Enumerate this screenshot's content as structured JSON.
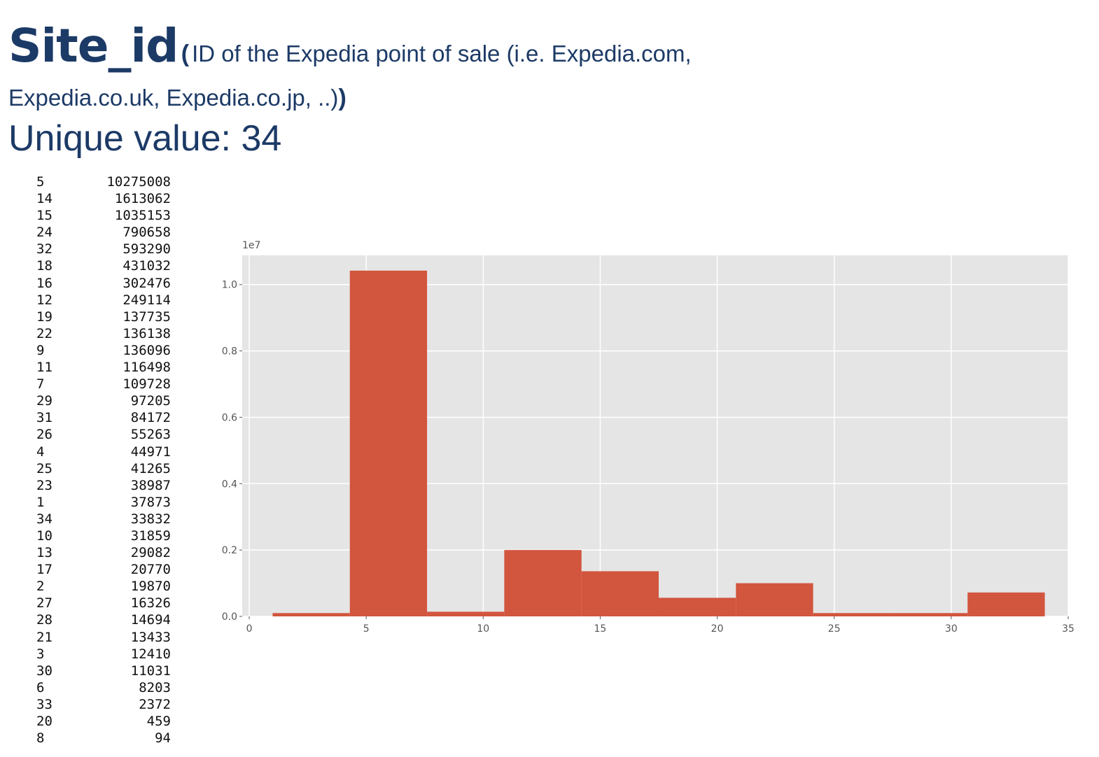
{
  "header": {
    "title": "Site_id",
    "paren_open": "(",
    "description_line1": "ID of the Expedia point of sale (i.e. Expedia.com,",
    "description_line2": "Expedia.co.uk, Expedia.co.jp, ..)",
    "paren_close": ")"
  },
  "unique_value_label": "Unique value: 34",
  "value_counts": [
    {
      "key": "5",
      "count": "10275008"
    },
    {
      "key": "14",
      "count": "1613062"
    },
    {
      "key": "15",
      "count": "1035153"
    },
    {
      "key": "24",
      "count": "790658"
    },
    {
      "key": "32",
      "count": "593290"
    },
    {
      "key": "18",
      "count": "431032"
    },
    {
      "key": "16",
      "count": "302476"
    },
    {
      "key": "12",
      "count": "249114"
    },
    {
      "key": "19",
      "count": "137735"
    },
    {
      "key": "22",
      "count": "136138"
    },
    {
      "key": "9",
      "count": "136096"
    },
    {
      "key": "11",
      "count": "116498"
    },
    {
      "key": "7",
      "count": "109728"
    },
    {
      "key": "29",
      "count": "97205"
    },
    {
      "key": "31",
      "count": "84172"
    },
    {
      "key": "26",
      "count": "55263"
    },
    {
      "key": "4",
      "count": "44971"
    },
    {
      "key": "25",
      "count": "41265"
    },
    {
      "key": "23",
      "count": "38987"
    },
    {
      "key": "1",
      "count": "37873"
    },
    {
      "key": "34",
      "count": "33832"
    },
    {
      "key": "10",
      "count": "31859"
    },
    {
      "key": "13",
      "count": "29082"
    },
    {
      "key": "17",
      "count": "20770"
    },
    {
      "key": "2",
      "count": "19870"
    },
    {
      "key": "27",
      "count": "16326"
    },
    {
      "key": "28",
      "count": "14694"
    },
    {
      "key": "21",
      "count": "13433"
    },
    {
      "key": "3",
      "count": "12410"
    },
    {
      "key": "30",
      "count": "11031"
    },
    {
      "key": "6",
      "count": "8203"
    },
    {
      "key": "33",
      "count": "2372"
    },
    {
      "key": "20",
      "count": "459"
    },
    {
      "key": "8",
      "count": "94"
    }
  ],
  "colors": {
    "text": "#1c3a66",
    "bar": "#d2553e",
    "plot_background": "#e5e5e5",
    "grid": "#ffffff",
    "tick_text": "#555555"
  },
  "chart_data": {
    "type": "bar",
    "bins": [
      {
        "x0": 1.0,
        "x1": 4.3,
        "value": 100000
      },
      {
        "x0": 4.3,
        "x1": 7.6,
        "value": 10420000
      },
      {
        "x0": 7.6,
        "x1": 10.9,
        "value": 140000
      },
      {
        "x0": 10.9,
        "x1": 14.2,
        "value": 2000000
      },
      {
        "x0": 14.2,
        "x1": 17.5,
        "value": 1360000
      },
      {
        "x0": 17.5,
        "x1": 20.8,
        "value": 560000
      },
      {
        "x0": 20.8,
        "x1": 24.1,
        "value": 1000000
      },
      {
        "x0": 24.1,
        "x1": 27.4,
        "value": 100000
      },
      {
        "x0": 27.4,
        "x1": 30.7,
        "value": 100000
      },
      {
        "x0": 30.7,
        "x1": 34.0,
        "value": 720000
      }
    ],
    "xlim": [
      -0.3,
      35.0
    ],
    "ylim": [
      0,
      10880000
    ],
    "xticks": [
      0,
      5,
      10,
      15,
      20,
      25,
      30,
      35
    ],
    "xtick_labels": [
      "0",
      "5",
      "10",
      "15",
      "20",
      "25",
      "30",
      "35"
    ],
    "yticks": [
      0,
      2000000,
      4000000,
      6000000,
      8000000,
      10000000
    ],
    "ytick_labels": [
      "0.0",
      "0.2",
      "0.4",
      "0.6",
      "0.8",
      "1.0"
    ],
    "y_offset_label": "1e7",
    "title": "",
    "xlabel": "",
    "ylabel": "",
    "grid": true,
    "legend": "none"
  }
}
